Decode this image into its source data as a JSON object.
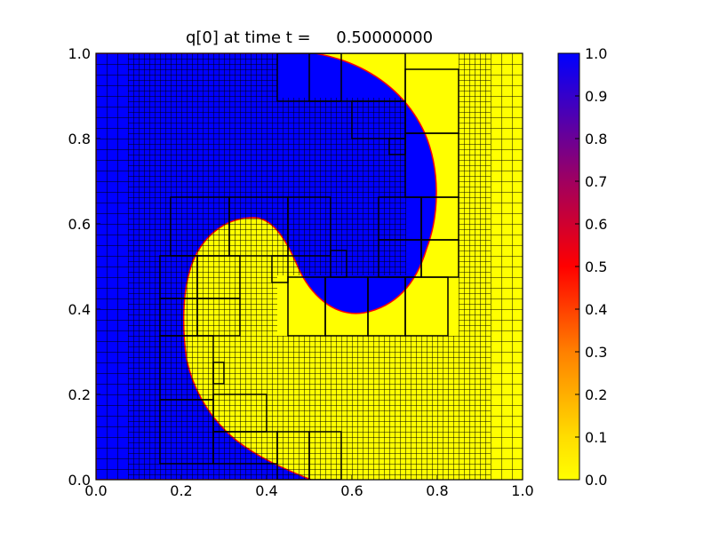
{
  "chart_data": {
    "type": "heatmap",
    "title": "q[0] at time t =     0.50000000",
    "xlabel": "",
    "ylabel": "",
    "xlim": [
      0.0,
      1.0
    ],
    "ylim": [
      0.0,
      1.0
    ],
    "x_ticks": [
      "0.0",
      "0.2",
      "0.4",
      "0.6",
      "0.8",
      "1.0"
    ],
    "y_ticks": [
      "0.0",
      "0.2",
      "0.4",
      "0.6",
      "0.8",
      "1.0"
    ],
    "colorbar": {
      "min": 0.0,
      "max": 1.0,
      "ticks": [
        "0.0",
        "0.1",
        "0.2",
        "0.3",
        "0.4",
        "0.5",
        "0.6",
        "0.7",
        "0.8",
        "0.9",
        "1.0"
      ],
      "colors": [
        "#ffff00",
        "#ff0000",
        "#0000ff"
      ]
    },
    "field_description_values": {
      "high_value_color": "#0000ff",
      "low_value_color": "#ffff00",
      "interface_color": "#ff0000"
    },
    "grid": true,
    "mesh_note": "adaptive refinement patches"
  }
}
